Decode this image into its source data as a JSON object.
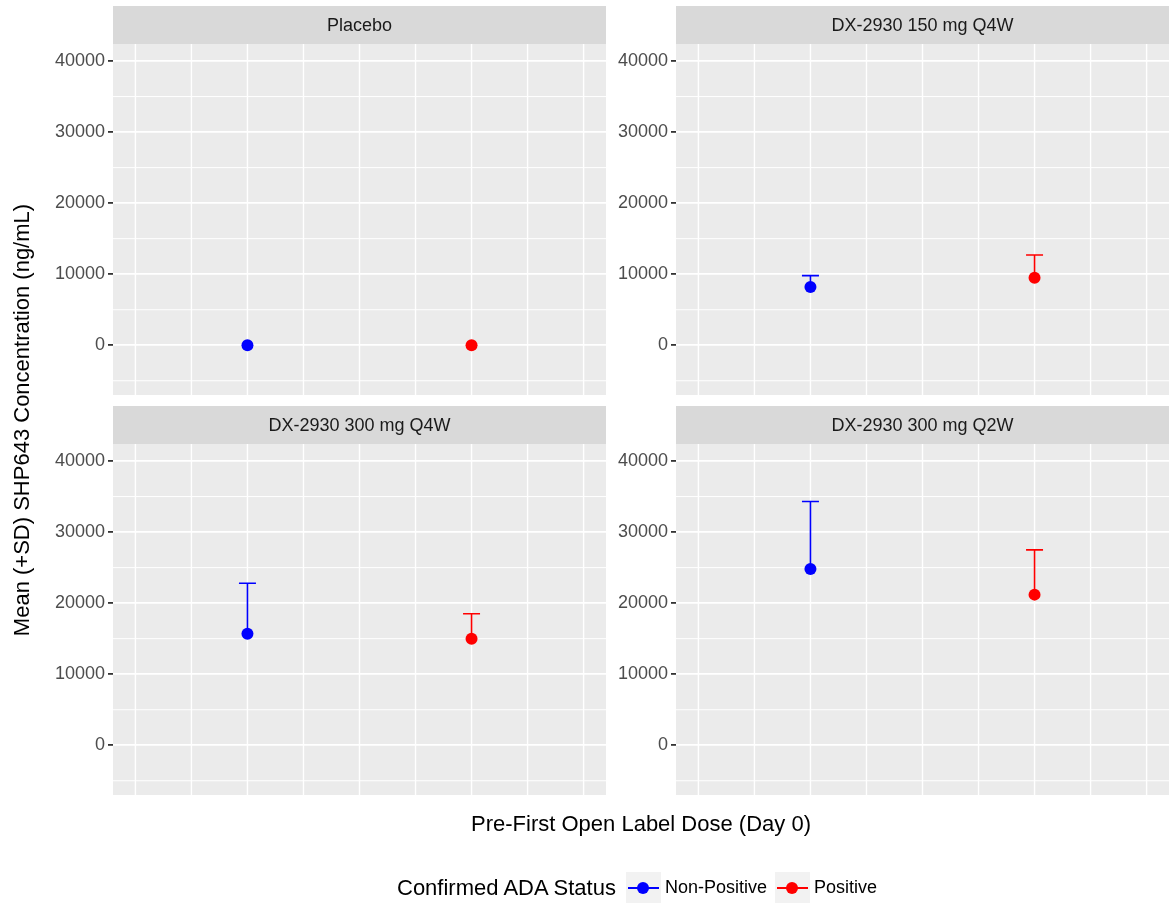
{
  "chart_data": [
    {
      "type": "scatter",
      "title": "Placebo",
      "ylabel": "Mean (+SD) SHP643 Concentration (ng/mL)",
      "xlabel": "Pre-First Open Label Dose (Day 0)",
      "legend_title": "Confirmed ADA Status",
      "legend": "bottom",
      "categories": [
        null,
        null
      ],
      "series": [
        {
          "name": "Non-Positive",
          "color": "#0000ff",
          "values": [
            0,
            null
          ]
        },
        {
          "name": "Positive",
          "color": "#ff0000",
          "values": [
            null,
            0
          ]
        }
      ],
      "ylim": [
        -7000,
        42400
      ],
      "yticks": [
        0,
        10000,
        20000,
        30000,
        40000
      ],
      "grid": true,
      "marker": "circle",
      "tick_labels": "y"
    },
    {
      "type": "scatter",
      "title": "DX-2930 150 mg Q4W",
      "categories": [
        null,
        null
      ],
      "series": [
        {
          "color": "#0000ff",
          "values": [
            8200,
            null
          ],
          "errors": [
            [
              8200,
              9800
            ],
            null
          ]
        },
        {
          "color": "#ff0000",
          "values": [
            null,
            9500
          ],
          "errors": [
            null,
            [
              9500,
              12700
            ]
          ]
        }
      ],
      "ylim": [
        -7000,
        42400
      ],
      "yticks": [
        0,
        10000,
        20000,
        30000,
        40000
      ],
      "grid": true,
      "marker": "circle",
      "tick_labels": "y"
    },
    {
      "type": "scatter",
      "title": "DX-2930 300 mg Q4W",
      "categories": [
        null,
        null
      ],
      "series": [
        {
          "color": "#0000ff",
          "values": [
            15700,
            null
          ],
          "errors": [
            [
              15700,
              22800
            ],
            null
          ]
        },
        {
          "color": "#ff0000",
          "values": [
            null,
            15000
          ],
          "errors": [
            null,
            [
              15000,
              18500
            ]
          ]
        }
      ],
      "ylim": [
        -7000,
        42400
      ],
      "yticks": [
        0,
        10000,
        20000,
        30000,
        40000
      ],
      "grid": true,
      "marker": "circle",
      "tick_labels": "y"
    },
    {
      "type": "scatter",
      "title": "DX-2930 300 mg Q2W",
      "categories": [
        null,
        null
      ],
      "series": [
        {
          "color": "#0000ff",
          "values": [
            24800,
            null
          ],
          "errors": [
            [
              24800,
              34300
            ],
            null
          ]
        },
        {
          "color": "#ff0000",
          "values": [
            null,
            21200
          ],
          "errors": [
            null,
            [
              21200,
              27500
            ]
          ]
        }
      ],
      "ylim": [
        -7000,
        42400
      ],
      "yticks": [
        0,
        10000,
        20000,
        30000,
        40000
      ],
      "grid": true,
      "marker": "circle",
      "tick_labels": "y"
    }
  ]
}
